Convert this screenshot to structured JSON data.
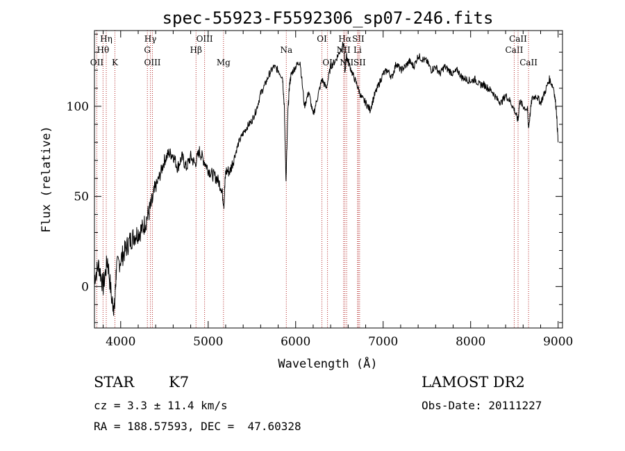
{
  "chart_data": {
    "type": "line",
    "title": "spec-55923-F5592306_sp07-246.fits",
    "xlabel": "Wavelength (Å)",
    "ylabel": "Flux (relative)",
    "xlim": [
      3700,
      9050
    ],
    "ylim": [
      -23,
      142
    ],
    "x_ticks": [
      4000,
      5000,
      6000,
      7000,
      8000,
      9000
    ],
    "y_ticks": [
      0,
      50,
      100
    ],
    "series": [
      {
        "x": [
          3700,
          3750,
          3800,
          3850,
          3900,
          3930,
          3950,
          4000,
          4050,
          4100,
          4150,
          4200,
          4250,
          4300,
          4350,
          4400,
          4450,
          4500,
          4550,
          4600,
          4650,
          4700,
          4750,
          4800,
          4850,
          4900,
          4950,
          5000,
          5050,
          5100,
          5150,
          5180,
          5200,
          5250,
          5300,
          5350,
          5400,
          5450,
          5500,
          5550,
          5600,
          5650,
          5700,
          5750,
          5800,
          5850,
          5870,
          5890,
          5910,
          5930,
          5950,
          6000,
          6050,
          6100,
          6150,
          6200,
          6250,
          6300,
          6350,
          6400,
          6450,
          6500,
          6550,
          6563,
          6580,
          6600,
          6650,
          6700,
          6750,
          6800,
          6850,
          6900,
          6950,
          7000,
          7050,
          7100,
          7150,
          7200,
          7250,
          7300,
          7350,
          7400,
          7450,
          7500,
          7550,
          7600,
          7650,
          7700,
          7750,
          7800,
          7850,
          7900,
          7950,
          8000,
          8050,
          8100,
          8150,
          8200,
          8250,
          8300,
          8350,
          8400,
          8450,
          8500,
          8542,
          8560,
          8600,
          8650,
          8662,
          8700,
          8750,
          8800,
          8850,
          8900,
          8950,
          8980,
          9000
        ],
        "y": [
          5,
          12,
          0,
          15,
          -8,
          -12,
          10,
          15,
          20,
          25,
          28,
          30,
          32,
          38,
          45,
          55,
          62,
          70,
          74,
          73,
          66,
          72,
          66,
          72,
          68,
          75,
          70,
          65,
          62,
          60,
          55,
          46,
          64,
          64,
          72,
          80,
          85,
          89,
          92,
          98,
          107,
          112,
          118,
          122,
          120,
          116,
          100,
          58,
          96,
          112,
          118,
          122,
          125,
          100,
          108,
          95,
          105,
          115,
          110,
          122,
          125,
          130,
          135,
          118,
          128,
          125,
          118,
          112,
          105,
          102,
          98,
          106,
          112,
          118,
          120,
          116,
          124,
          120,
          122,
          125,
          122,
          128,
          126,
          125,
          120,
          122,
          118,
          122,
          120,
          118,
          120,
          116,
          115,
          114,
          115,
          112,
          112,
          110,
          108,
          104,
          102,
          106,
          103,
          98,
          92,
          103,
          100,
          98,
          88,
          104,
          106,
          102,
          108,
          115,
          110,
          98,
          80
        ]
      }
    ],
    "lines": [
      {
        "label": "OII",
        "x": 3727,
        "row": 2
      },
      {
        "label": "Hθ",
        "x": 3798,
        "row": 1
      },
      {
        "label": "Hη",
        "x": 3835,
        "row": 0
      },
      {
        "label": "K",
        "x": 3934,
        "row": 2
      },
      {
        "label": "Hγ",
        "x": 4340,
        "row": 0
      },
      {
        "label": "G",
        "x": 4305,
        "row": 1
      },
      {
        "label": "OIII",
        "x": 4363,
        "row": 2
      },
      {
        "label": "Hβ",
        "x": 4861,
        "row": 1
      },
      {
        "label": "OIII",
        "x": 4959,
        "row": 0
      },
      {
        "label": "Mg",
        "x": 5175,
        "row": 2
      },
      {
        "label": "Na",
        "x": 5893,
        "row": 1
      },
      {
        "label": "OI",
        "x": 6300,
        "row": 0
      },
      {
        "label": "OI",
        "x": 6364,
        "row": 2
      },
      {
        "label": "Hα",
        "x": 6563,
        "row": 0
      },
      {
        "label": "SII",
        "x": 6716,
        "row": 0
      },
      {
        "label": "NII",
        "x": 6548,
        "row": 1
      },
      {
        "label": "Li",
        "x": 6708,
        "row": 1
      },
      {
        "label": "NII",
        "x": 6583,
        "row": 2
      },
      {
        "label": "SII",
        "x": 6731,
        "row": 2
      },
      {
        "label": "CaII",
        "x": 8498,
        "row": 1
      },
      {
        "label": "CaII",
        "x": 8542,
        "row": 0
      },
      {
        "label": "CaII",
        "x": 8662,
        "row": 2
      }
    ],
    "grid": false,
    "line_color": "#000000",
    "marker_color": "#b22222"
  },
  "info": {
    "class": "STAR",
    "subclass": "K7",
    "survey": "LAMOST DR2",
    "cz": "cz = 3.3 ± 11.4 km/s",
    "obs_date": "Obs-Date: 20111227",
    "radec": "RA = 188.57593, DEC =  47.60328"
  }
}
